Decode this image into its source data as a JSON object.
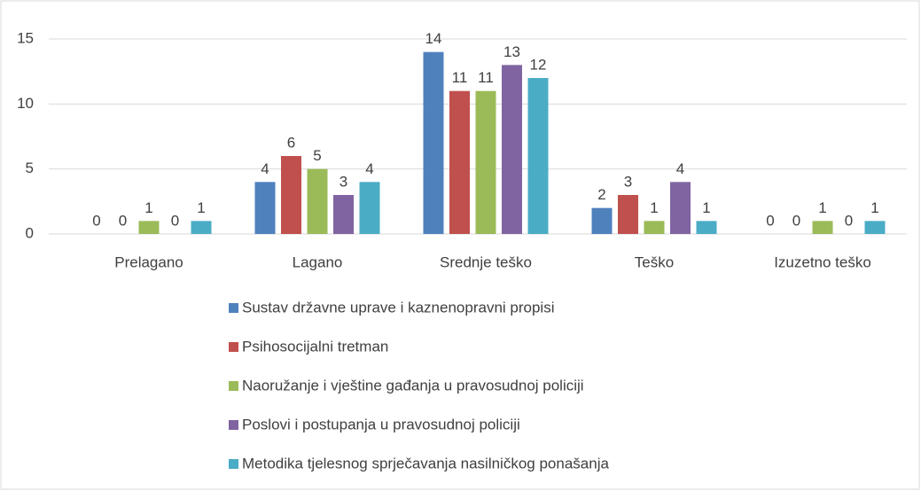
{
  "chart_data": {
    "type": "bar",
    "categories": [
      "Prelagano",
      "Lagano",
      "Srednje teško",
      "Teško",
      "Izuzetno teško"
    ],
    "series": [
      {
        "name": "Sustav državne uprave i kaznenopravni propisi",
        "color": "#4f81bd",
        "values": [
          0,
          4,
          14,
          2,
          0
        ]
      },
      {
        "name": "Psihosocijalni tretman",
        "color": "#c0504d",
        "values": [
          0,
          6,
          11,
          3,
          0
        ]
      },
      {
        "name": "Naoružanje i vještine gađanja u pravosudnoj policiji",
        "color": "#9bbb59",
        "values": [
          1,
          5,
          11,
          1,
          1
        ]
      },
      {
        "name": "Poslovi i postupanja u pravosudnoj policiji",
        "color": "#8064a2",
        "values": [
          0,
          3,
          13,
          4,
          0
        ]
      },
      {
        "name": "Metodika tjelesnog sprječavanja nasilničkog ponašanja",
        "color": "#4bacc6",
        "values": [
          1,
          4,
          12,
          1,
          1
        ]
      }
    ],
    "ylim": [
      0,
      15
    ],
    "yticks": [
      0,
      5,
      10,
      15
    ],
    "grid": true,
    "legend": "bottom"
  }
}
